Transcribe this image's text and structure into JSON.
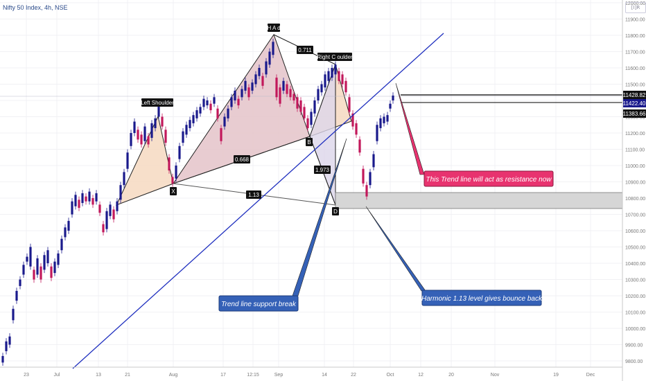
{
  "header": {
    "symbol_title": "Nifty 50 Index, 4h, NSE",
    "logo_text": "[I]R"
  },
  "colors": {
    "bull": "#1a1a8c",
    "bear": "#c2185b",
    "trendline": "#1f2fbf",
    "pattern_fill_left": "#f6dcc4",
    "pattern_fill_main": "#e6c6cc",
    "pattern_fill_right": "#dcd6ea",
    "support_zone": "#d6d6d6",
    "callout_red": "#e8336f",
    "callout_blue": "#3561b7"
  },
  "chart_data": {
    "type": "candlestick",
    "title": "",
    "xlabel": "",
    "ylabel": "",
    "ylim": [
      9760,
      12000
    ],
    "x_ticks": [
      "23",
      "Jul",
      "13",
      "21",
      "Aug",
      "17",
      "12:15",
      "Sep",
      "14",
      "22",
      "Oct",
      "12",
      "20",
      "Nov",
      "19",
      "Dec"
    ],
    "y_ticks": [
      "12000.00",
      "11900.00",
      "11800.00",
      "11700.00",
      "11600.00",
      "11500.00",
      "11400.00",
      "11300.00",
      "11200.00",
      "11100.00",
      "11000.00",
      "10900.00",
      "10800.00",
      "10700.00",
      "10600.00",
      "10500.00",
      "10400.00",
      "10300.00",
      "10200.00",
      "10100.00",
      "10000.00",
      "9900.00",
      "9800.00"
    ],
    "price_levels": [
      "11428.82",
      "11422.40",
      "11383.66"
    ],
    "pattern_labels": {
      "left_shoulder": "Left Shoulder",
      "head": "H A d",
      "right_shoulder": "Right C oulder",
      "x": "X",
      "b": "B",
      "d": "D"
    },
    "ratios": [
      "0.711",
      "0.668",
      "1.973",
      "1.13"
    ],
    "annotations": [
      "This Trend line will act as resistance now",
      "Trend line support break",
      "Harmonic 1.13 level gives bounce back"
    ],
    "support_zone": [
      10735,
      10830
    ],
    "trendline": {
      "from": [
        105,
        9770
      ],
      "to": [
        640,
        11810
      ]
    },
    "harmonic_points": {
      "X": 10890,
      "A": 11800,
      "B": 11195,
      "C": 11620,
      "D": 10765
    },
    "candles": [
      [
        4,
        9830,
        9790
      ],
      [
        9,
        9920,
        9860
      ],
      [
        14,
        9950,
        9900
      ],
      [
        19,
        10120,
        10050
      ],
      [
        24,
        10230,
        10170
      ],
      [
        29,
        10300,
        10260
      ],
      [
        34,
        10390,
        10330
      ],
      [
        39,
        10440,
        10410
      ],
      [
        44,
        10500,
        10380
      ],
      [
        49,
        10360,
        10300
      ],
      [
        54,
        10430,
        10330
      ],
      [
        59,
        10380,
        10300
      ],
      [
        64,
        10450,
        10360
      ],
      [
        69,
        10480,
        10400
      ],
      [
        74,
        10380,
        10310
      ],
      [
        79,
        10410,
        10340
      ],
      [
        84,
        10460,
        10390
      ],
      [
        89,
        10550,
        10480
      ],
      [
        94,
        10620,
        10560
      ],
      [
        99,
        10660,
        10600
      ],
      [
        104,
        10780,
        10700
      ],
      [
        109,
        10820,
        10750
      ],
      [
        114,
        10790,
        10740
      ],
      [
        119,
        10830,
        10770
      ],
      [
        124,
        10810,
        10780
      ],
      [
        129,
        10840,
        10780
      ],
      [
        134,
        10800,
        10760
      ],
      [
        139,
        10830,
        10780
      ],
      [
        144,
        10760,
        10710
      ],
      [
        149,
        10640,
        10590
      ],
      [
        154,
        10720,
        10610
      ],
      [
        159,
        10760,
        10690
      ],
      [
        164,
        10730,
        10670
      ],
      [
        169,
        10780,
        10720
      ],
      [
        174,
        10880,
        10790
      ],
      [
        179,
        10960,
        10880
      ],
      [
        184,
        11080,
        10980
      ],
      [
        189,
        11200,
        11120
      ],
      [
        194,
        11270,
        11200
      ],
      [
        199,
        11220,
        11160
      ],
      [
        204,
        11190,
        11130
      ],
      [
        209,
        11240,
        11150
      ],
      [
        214,
        11180,
        11130
      ],
      [
        219,
        11260,
        11170
      ],
      [
        224,
        11290,
        11230
      ],
      [
        229,
        11370,
        11300
      ],
      [
        234,
        11300,
        11240
      ],
      [
        239,
        11220,
        11140
      ],
      [
        244,
        11050,
        10970
      ],
      [
        249,
        10930,
        10890
      ],
      [
        254,
        11000,
        10920
      ],
      [
        259,
        11120,
        11040
      ],
      [
        264,
        11210,
        11140
      ],
      [
        269,
        11250,
        11190
      ],
      [
        274,
        11280,
        11230
      ],
      [
        279,
        11310,
        11260
      ],
      [
        284,
        11340,
        11290
      ],
      [
        289,
        11360,
        11320
      ],
      [
        294,
        11410,
        11360
      ],
      [
        299,
        11400,
        11370
      ],
      [
        304,
        11380,
        11340
      ],
      [
        309,
        11420,
        11380
      ],
      [
        314,
        11350,
        11290
      ],
      [
        319,
        11230,
        11150
      ],
      [
        324,
        11300,
        11240
      ],
      [
        329,
        11350,
        11290
      ],
      [
        334,
        11420,
        11360
      ],
      [
        339,
        11460,
        11400
      ],
      [
        344,
        11410,
        11370
      ],
      [
        349,
        11470,
        11420
      ],
      [
        354,
        11520,
        11460
      ],
      [
        359,
        11480,
        11420
      ],
      [
        364,
        11510,
        11460
      ],
      [
        369,
        11560,
        11500
      ],
      [
        374,
        11600,
        11550
      ],
      [
        379,
        11550,
        11490
      ],
      [
        384,
        11640,
        11560
      ],
      [
        389,
        11700,
        11620
      ],
      [
        394,
        11760,
        11680
      ],
      [
        399,
        11540,
        11420
      ],
      [
        404,
        11480,
        11380
      ],
      [
        409,
        11520,
        11460
      ],
      [
        414,
        11500,
        11440
      ],
      [
        419,
        11470,
        11420
      ],
      [
        424,
        11440,
        11400
      ],
      [
        429,
        11420,
        11350
      ],
      [
        434,
        11400,
        11330
      ],
      [
        439,
        11360,
        11290
      ],
      [
        444,
        11290,
        11230
      ],
      [
        449,
        11330,
        11250
      ],
      [
        454,
        11400,
        11320
      ],
      [
        459,
        11470,
        11400
      ],
      [
        464,
        11500,
        11450
      ],
      [
        469,
        11560,
        11480
      ],
      [
        474,
        11580,
        11520
      ],
      [
        479,
        11600,
        11540
      ],
      [
        484,
        11620,
        11560
      ],
      [
        489,
        11580,
        11520
      ],
      [
        494,
        11560,
        11500
      ],
      [
        499,
        11520,
        11450
      ],
      [
        504,
        11420,
        11330
      ],
      [
        509,
        11320,
        11240
      ],
      [
        514,
        11260,
        11190
      ],
      [
        519,
        11160,
        11080
      ],
      [
        524,
        10980,
        10890
      ],
      [
        529,
        10880,
        10810
      ],
      [
        534,
        10960,
        10880
      ],
      [
        539,
        11070,
        10990
      ],
      [
        544,
        11250,
        11150
      ],
      [
        549,
        11290,
        11230
      ],
      [
        554,
        11300,
        11260
      ],
      [
        559,
        11310,
        11270
      ],
      [
        563,
        11380,
        11350
      ],
      [
        567,
        11430,
        11400
      ]
    ]
  }
}
